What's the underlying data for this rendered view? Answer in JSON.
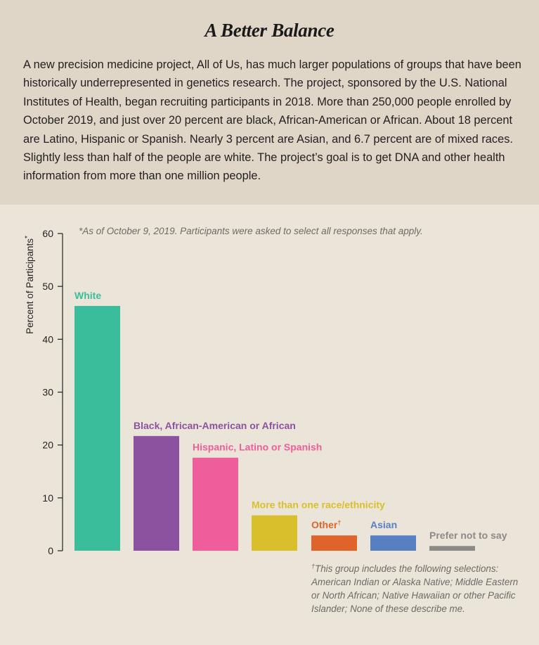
{
  "header": {
    "title": "A Better Balance",
    "intro": "A new precision medicine project, All of Us, has much larger populations of groups that have been historically underrepresented in genetics research. The project, sponsored by the U.S. National Institutes of Health, began recruiting participants in 2018. More than 250,000 people enrolled by October 2019, and just over 20 percent are black, African-American or African. About 18 percent are Latino, Hispanic or Spanish. Nearly 3 percent are Asian, and 6.7 percent are of mixed races. Slightly less than half of the people are white. The project’s goal is to get DNA and other health information from more than one million people."
  },
  "notes": {
    "top": "*As of October 9, 2019. Participants were asked to select all responses that apply.",
    "bottom_mark": "†",
    "bottom": "This group includes the following selections: American Indian or Alaska Native; Middle Eastern or North African; Native Hawaiian or other Pacific Islander; None of these describe me."
  },
  "colors": {
    "header_bg": "#e0d6c8",
    "chart_bg": "#ebe5d9",
    "axis": "#231f20"
  },
  "chart_data": {
    "type": "bar",
    "ylabel": "Percent of Participants",
    "ylabel_mark": "*",
    "ylim": [
      0,
      60
    ],
    "yticks": [
      "0",
      "10",
      "20",
      "30",
      "40",
      "50",
      "60"
    ],
    "grid": false,
    "legend": "none",
    "categories": [
      "White",
      "Black, African-American or African",
      "Hispanic, Latino or Spanish",
      "More than one race/ethnicity",
      "Other",
      "Asian",
      "Prefer not to say"
    ],
    "category_marks": [
      "",
      "",
      "",
      "",
      "†",
      "",
      ""
    ],
    "values": [
      46.3,
      21.7,
      17.6,
      6.7,
      2.9,
      2.9,
      0.9
    ],
    "colors": [
      "#3abd9b",
      "#8b539f",
      "#ef5e9a",
      "#d9bf2c",
      "#e0642a",
      "#5680c2",
      "#8c8a87"
    ]
  }
}
